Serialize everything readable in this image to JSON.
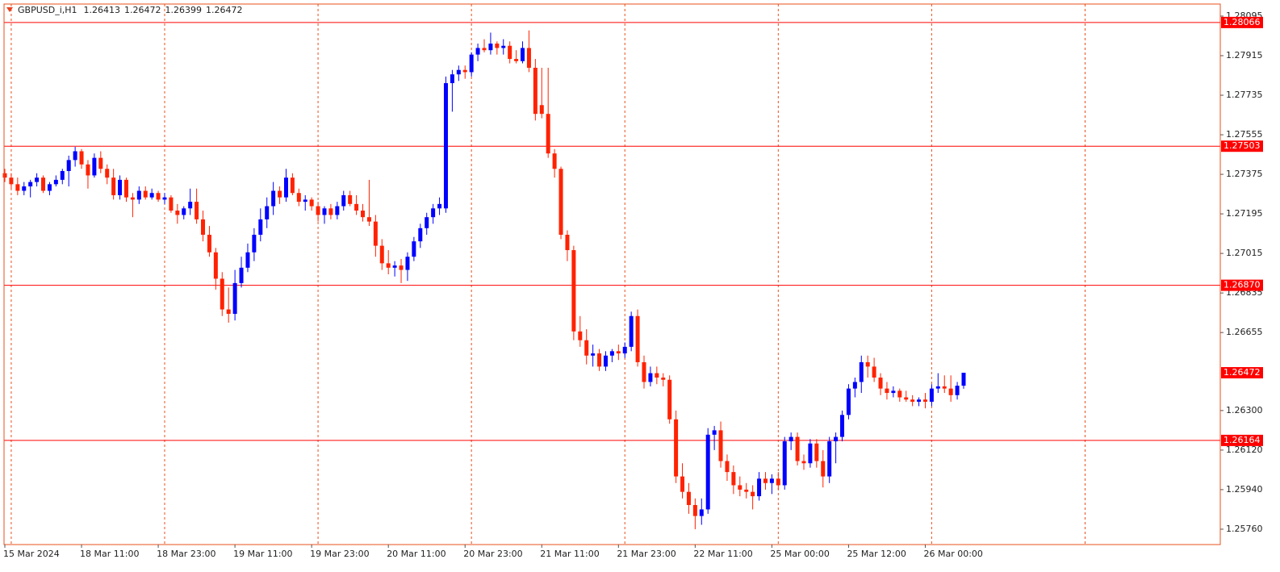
{
  "chart_data": {
    "type": "candlestick",
    "title": "GBPUSD_i,H1",
    "categories": [
      "15 Mar 2024",
      null,
      null,
      null,
      null,
      null,
      null,
      null,
      null,
      null,
      null,
      null,
      "18 Mar 11:00",
      null,
      null,
      null,
      null,
      null,
      null,
      null,
      null,
      null,
      null,
      null,
      "18 Mar 23:00",
      null,
      null,
      null,
      null,
      null,
      null,
      null,
      null,
      null,
      null,
      null,
      "19 Mar 11:00",
      null,
      null,
      null,
      null,
      null,
      null,
      null,
      null,
      null,
      null,
      null,
      "19 Mar 23:00",
      null,
      null,
      null,
      null,
      null,
      null,
      null,
      null,
      null,
      null,
      null,
      "20 Mar 11:00",
      null,
      null,
      null,
      null,
      null,
      null,
      null,
      null,
      null,
      null,
      null,
      "20 Mar 23:00",
      null,
      null,
      null,
      null,
      null,
      null,
      null,
      null,
      null,
      null,
      null,
      "21 Mar 11:00",
      null,
      null,
      null,
      null,
      null,
      null,
      null,
      null,
      null,
      null,
      null,
      "21 Mar 23:00",
      null,
      null,
      null,
      null,
      null,
      null,
      null,
      null,
      null,
      null,
      null,
      "22 Mar 11:00",
      null,
      null,
      null,
      null,
      null,
      null,
      null,
      null,
      null,
      null,
      null,
      "25 Mar 00:00",
      null,
      null,
      null,
      null,
      null,
      null,
      null,
      null,
      null,
      null,
      null,
      "25 Mar 12:00",
      null,
      null,
      null,
      null,
      null,
      null,
      null,
      null,
      null,
      null,
      null,
      "26 Mar 00:00",
      null,
      null,
      null,
      null,
      null,
      null
    ],
    "ohlc": [
      [
        1.2738,
        1.274,
        1.2734,
        1.2736
      ],
      [
        1.2736,
        1.2738,
        1.2731,
        1.2733
      ],
      [
        1.2733,
        1.2736,
        1.2728,
        1.273
      ],
      [
        1.273,
        1.2734,
        1.2728,
        1.2732
      ],
      [
        1.2732,
        1.2735,
        1.2727,
        1.2734
      ],
      [
        1.2734,
        1.2738,
        1.2732,
        1.2736
      ],
      [
        1.2736,
        1.2737,
        1.2729,
        1.273
      ],
      [
        1.273,
        1.2734,
        1.2728,
        1.2733
      ],
      [
        1.2733,
        1.2737,
        1.2732,
        1.2735
      ],
      [
        1.2735,
        1.274,
        1.2733,
        1.2739
      ],
      [
        1.2739,
        1.2746,
        1.2732,
        1.2744
      ],
      [
        1.2744,
        1.275,
        1.2741,
        1.2748
      ],
      [
        1.2748,
        1.2749,
        1.274,
        1.2742
      ],
      [
        1.2742,
        1.2744,
        1.2731,
        1.2737
      ],
      [
        1.2737,
        1.2747,
        1.2736,
        1.2745
      ],
      [
        1.2745,
        1.2748,
        1.2738,
        1.274
      ],
      [
        1.274,
        1.2742,
        1.2733,
        1.2736
      ],
      [
        1.2736,
        1.274,
        1.2726,
        1.2728
      ],
      [
        1.2728,
        1.2737,
        1.2726,
        1.2735
      ],
      [
        1.2735,
        1.2736,
        1.2725,
        1.2727
      ],
      [
        1.2727,
        1.2729,
        1.2718,
        1.2726
      ],
      [
        1.2726,
        1.2732,
        1.2724,
        1.273
      ],
      [
        1.273,
        1.2732,
        1.2726,
        1.2727
      ],
      [
        1.2727,
        1.2731,
        1.2726,
        1.2729
      ],
      [
        1.2729,
        1.273,
        1.2725,
        1.2726
      ],
      [
        1.2726,
        1.2729,
        1.2724,
        1.2727
      ],
      [
        1.2727,
        1.2728,
        1.272,
        1.2721
      ],
      [
        1.2721,
        1.2724,
        1.2715,
        1.2719
      ],
      [
        1.2719,
        1.2723,
        1.2717,
        1.2722
      ],
      [
        1.2722,
        1.2731,
        1.2719,
        1.2725
      ],
      [
        1.2725,
        1.2731,
        1.2715,
        1.2717
      ],
      [
        1.2717,
        1.2721,
        1.2707,
        1.271
      ],
      [
        1.271,
        1.2714,
        1.27,
        1.2702
      ],
      [
        1.2702,
        1.2704,
        1.2685,
        1.269
      ],
      [
        1.269,
        1.2693,
        1.2673,
        1.2676
      ],
      [
        1.2676,
        1.2686,
        1.267,
        1.2674
      ],
      [
        1.2674,
        1.2694,
        1.2671,
        1.2688
      ],
      [
        1.2688,
        1.27,
        1.2686,
        1.2695
      ],
      [
        1.2695,
        1.2706,
        1.2693,
        1.2702
      ],
      [
        1.2702,
        1.2713,
        1.2698,
        1.271
      ],
      [
        1.271,
        1.2722,
        1.2707,
        1.2717
      ],
      [
        1.2717,
        1.2727,
        1.2713,
        1.2723
      ],
      [
        1.2723,
        1.2734,
        1.2719,
        1.273
      ],
      [
        1.273,
        1.2732,
        1.2724,
        1.2727
      ],
      [
        1.2727,
        1.274,
        1.2725,
        1.2736
      ],
      [
        1.2736,
        1.2738,
        1.2728,
        1.2729
      ],
      [
        1.2729,
        1.2731,
        1.2723,
        1.2725
      ],
      [
        1.2725,
        1.2728,
        1.2721,
        1.2726
      ],
      [
        1.2726,
        1.2727,
        1.2721,
        1.2723
      ],
      [
        1.2723,
        1.2725,
        1.2716,
        1.2719
      ],
      [
        1.2719,
        1.2723,
        1.2715,
        1.2722
      ],
      [
        1.2722,
        1.2724,
        1.2717,
        1.2719
      ],
      [
        1.2719,
        1.2725,
        1.2717,
        1.2723
      ],
      [
        1.2723,
        1.273,
        1.2721,
        1.2728
      ],
      [
        1.2728,
        1.273,
        1.2723,
        1.2724
      ],
      [
        1.2724,
        1.2728,
        1.2719,
        1.2721
      ],
      [
        1.2721,
        1.2724,
        1.2716,
        1.2718
      ],
      [
        1.2718,
        1.2735,
        1.2714,
        1.2716
      ],
      [
        1.2716,
        1.2719,
        1.27,
        1.2705
      ],
      [
        1.2705,
        1.2708,
        1.2694,
        1.2697
      ],
      [
        1.2697,
        1.2703,
        1.2692,
        1.2695
      ],
      [
        1.2695,
        1.2698,
        1.2691,
        1.2696
      ],
      [
        1.2696,
        1.2699,
        1.2688,
        1.2694
      ],
      [
        1.2694,
        1.2702,
        1.2689,
        1.27
      ],
      [
        1.27,
        1.2709,
        1.2698,
        1.2707
      ],
      [
        1.2707,
        1.2715,
        1.2704,
        1.2713
      ],
      [
        1.2713,
        1.272,
        1.271,
        1.2718
      ],
      [
        1.2718,
        1.2724,
        1.2715,
        1.2722
      ],
      [
        1.2722,
        1.2727,
        1.2719,
        1.2724
      ],
      [
        1.2722,
        1.2782,
        1.272,
        1.2779
      ],
      [
        1.2779,
        1.2785,
        1.2766,
        1.2783
      ],
      [
        1.2783,
        1.2787,
        1.278,
        1.2785
      ],
      [
        1.2785,
        1.2787,
        1.2781,
        1.2784
      ],
      [
        1.2784,
        1.2793,
        1.2782,
        1.2792
      ],
      [
        1.2792,
        1.2797,
        1.2789,
        1.2795
      ],
      [
        1.2795,
        1.2799,
        1.2793,
        1.2794
      ],
      [
        1.2794,
        1.2802,
        1.2792,
        1.2797
      ],
      [
        1.2797,
        1.2798,
        1.2792,
        1.2795
      ],
      [
        1.2795,
        1.2799,
        1.2792,
        1.2796
      ],
      [
        1.2796,
        1.2798,
        1.2788,
        1.279
      ],
      [
        1.279,
        1.2794,
        1.2788,
        1.2789
      ],
      [
        1.2789,
        1.2798,
        1.2788,
        1.2795
      ],
      [
        1.2795,
        1.2803,
        1.2784,
        1.2786
      ],
      [
        1.2786,
        1.279,
        1.2762,
        1.2765
      ],
      [
        1.2769,
        1.2786,
        1.2763,
        1.2765
      ],
      [
        1.2765,
        1.2786,
        1.2745,
        1.2747
      ],
      [
        1.2747,
        1.2749,
        1.2736,
        1.274
      ],
      [
        1.274,
        1.2741,
        1.2708,
        1.271
      ],
      [
        1.271,
        1.2712,
        1.2698,
        1.2703
      ],
      [
        1.2703,
        1.2705,
        1.2662,
        1.2666
      ],
      [
        1.2666,
        1.2673,
        1.2659,
        1.2662
      ],
      [
        1.2662,
        1.2667,
        1.2651,
        1.2655
      ],
      [
        1.2655,
        1.266,
        1.265,
        1.2656
      ],
      [
        1.2656,
        1.2658,
        1.2648,
        1.265
      ],
      [
        1.265,
        1.2657,
        1.2648,
        1.2655
      ],
      [
        1.2655,
        1.2658,
        1.2652,
        1.2657
      ],
      [
        1.2657,
        1.266,
        1.2653,
        1.2656
      ],
      [
        1.2656,
        1.2661,
        1.2654,
        1.2659
      ],
      [
        1.2659,
        1.2675,
        1.2657,
        1.2673
      ],
      [
        1.2673,
        1.2676,
        1.265,
        1.2652
      ],
      [
        1.2652,
        1.2655,
        1.264,
        1.2643
      ],
      [
        1.2643,
        1.265,
        1.2641,
        1.2647
      ],
      [
        1.2647,
        1.265,
        1.2642,
        1.2645
      ],
      [
        1.2645,
        1.2647,
        1.2641,
        1.2644
      ],
      [
        1.2644,
        1.2646,
        1.2624,
        1.2626
      ],
      [
        1.2626,
        1.263,
        1.2597,
        1.26
      ],
      [
        1.26,
        1.2606,
        1.259,
        1.2593
      ],
      [
        1.2593,
        1.2597,
        1.2583,
        1.2587
      ],
      [
        1.2587,
        1.259,
        1.2576,
        1.2582
      ],
      [
        1.2582,
        1.259,
        1.2578,
        1.2585
      ],
      [
        1.2585,
        1.2622,
        1.2583,
        1.2619
      ],
      [
        1.2619,
        1.2623,
        1.2612,
        1.2621
      ],
      [
        1.2621,
        1.2625,
        1.2604,
        1.2607
      ],
      [
        1.2607,
        1.261,
        1.2598,
        1.2602
      ],
      [
        1.2602,
        1.2605,
        1.2592,
        1.2596
      ],
      [
        1.2596,
        1.26,
        1.2591,
        1.2594
      ],
      [
        1.2594,
        1.2597,
        1.259,
        1.2593
      ],
      [
        1.2593,
        1.2596,
        1.2585,
        1.2591
      ],
      [
        1.2591,
        1.2602,
        1.2589,
        1.2599
      ],
      [
        1.2599,
        1.2602,
        1.2594,
        1.2597
      ],
      [
        1.2597,
        1.2601,
        1.2592,
        1.2599
      ],
      [
        1.2599,
        1.2602,
        1.2594,
        1.2596
      ],
      [
        1.2596,
        1.2618,
        1.2594,
        1.2616
      ],
      [
        1.2616,
        1.262,
        1.2612,
        1.2618
      ],
      [
        1.2618,
        1.262,
        1.2605,
        1.2607
      ],
      [
        1.2607,
        1.261,
        1.2603,
        1.2606
      ],
      [
        1.2606,
        1.2617,
        1.2604,
        1.2615
      ],
      [
        1.2615,
        1.2617,
        1.2604,
        1.2607
      ],
      [
        1.2607,
        1.2612,
        1.2595,
        1.26
      ],
      [
        1.26,
        1.2618,
        1.2597,
        1.2616
      ],
      [
        1.2616,
        1.262,
        1.2606,
        1.2618
      ],
      [
        1.2618,
        1.263,
        1.2616,
        1.2628
      ],
      [
        1.2628,
        1.2642,
        1.2626,
        1.264
      ],
      [
        1.264,
        1.2645,
        1.2636,
        1.2643
      ],
      [
        1.2643,
        1.2655,
        1.2638,
        1.2652
      ],
      [
        1.2652,
        1.2655,
        1.2645,
        1.265
      ],
      [
        1.265,
        1.2654,
        1.2643,
        1.2645
      ],
      [
        1.2645,
        1.2647,
        1.2637,
        1.264
      ],
      [
        1.264,
        1.2643,
        1.2635,
        1.2638
      ],
      [
        1.2638,
        1.2641,
        1.2636,
        1.2639
      ],
      [
        1.2639,
        1.264,
        1.2634,
        1.2636
      ],
      [
        1.2636,
        1.2639,
        1.2634,
        1.2635
      ],
      [
        1.2635,
        1.2637,
        1.2632,
        1.2634
      ],
      [
        1.2634,
        1.2636,
        1.2632,
        1.2635
      ],
      [
        1.2635,
        1.2638,
        1.2631,
        1.2634
      ],
      [
        1.2634,
        1.2642,
        1.2632,
        1.264
      ],
      [
        1.264,
        1.2647,
        1.2638,
        1.2641
      ],
      [
        1.2641,
        1.2646,
        1.2638,
        1.264
      ],
      [
        1.264,
        1.2646,
        1.2634,
        1.2637
      ],
      [
        1.2637,
        1.2643,
        1.2635,
        1.26413
      ],
      [
        1.26413,
        1.26472,
        1.26399,
        1.26472
      ]
    ],
    "bull_color": "#0000ff",
    "bear_color": "#ff2200",
    "ylim": [
      1.2569,
      1.2815
    ],
    "yticks": [
      1.28095,
      1.27915,
      1.27735,
      1.27555,
      1.27375,
      1.27195,
      1.27015,
      1.26835,
      1.26655,
      {
        "value": 1.263,
        "label": "1.26300"
      },
      {
        "value": 1.2612,
        "label": "1.26120"
      },
      {
        "value": 1.2594,
        "label": "1.25940"
      },
      {
        "value": 1.2576,
        "label": "1.25760"
      }
    ],
    "levels": [
      1.28066,
      1.27503,
      {
        "value": 1.2687,
        "label": "1.26870"
      },
      1.26164
    ],
    "level_color": "#ff0000",
    "bid": 1.26472,
    "grid": true
  }
}
